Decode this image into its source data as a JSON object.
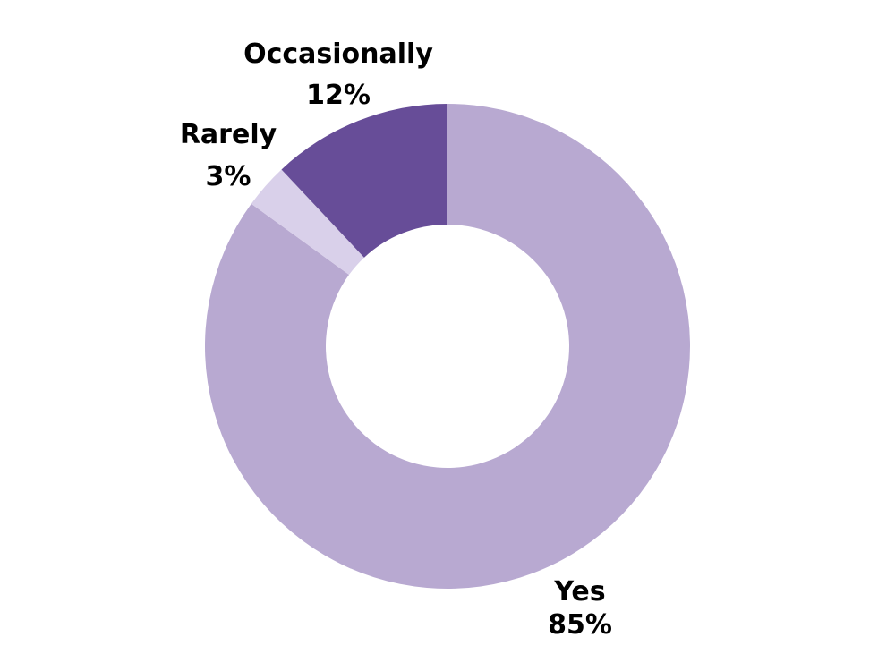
{
  "chart_data": {
    "type": "pie",
    "variant": "donut",
    "title": "",
    "slices": [
      {
        "label": "Yes",
        "value": 85,
        "value_label": "85%",
        "color": "#b8a9d1"
      },
      {
        "label": "Rarely",
        "value": 3,
        "value_label": "3%",
        "color": "#d9d0ea"
      },
      {
        "label": "Occasionally",
        "value": 12,
        "value_label": "12%",
        "color": "#674d98"
      }
    ],
    "start_angle_deg": 0,
    "direction": "clockwise",
    "legend": "none"
  }
}
